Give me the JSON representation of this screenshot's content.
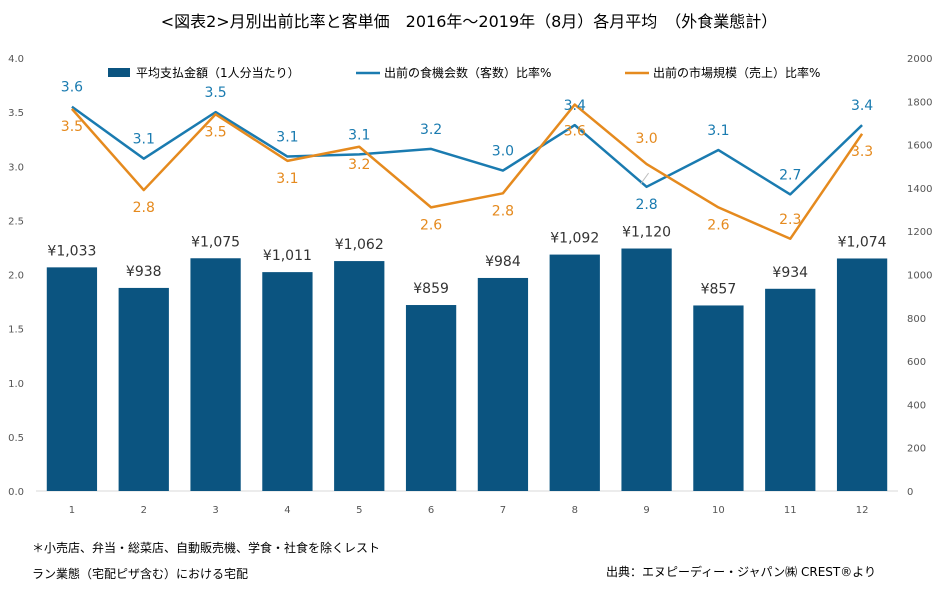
{
  "chart_data": {
    "type": "bar",
    "title": "<図表2>月別出前比率と客単価　2016年～2019年（8月）各月平均　（外食業態計）",
    "categories": [
      "1",
      "2",
      "3",
      "4",
      "5",
      "6",
      "7",
      "8",
      "9",
      "10",
      "11",
      "12"
    ],
    "series": [
      {
        "name": "平均支払金額（1人分当たり）",
        "type": "bar",
        "axis": "right",
        "color": "#0b5480",
        "values": [
          1033,
          938,
          1075,
          1011,
          1062,
          859,
          984,
          1092,
          1120,
          857,
          934,
          1074
        ],
        "labels": [
          "¥1,033",
          "¥938",
          "¥1,075",
          "¥1,011",
          "¥1,062",
          "¥859",
          "¥984",
          "¥1,092",
          "¥1,120",
          "¥857",
          "¥934",
          "¥1,074"
        ]
      },
      {
        "name": "出前の食機会数（客数）比率%",
        "type": "line",
        "axis": "left",
        "color": "#1a7bb0",
        "values": [
          3.55,
          3.07,
          3.5,
          3.09,
          3.11,
          3.16,
          2.96,
          3.38,
          2.81,
          3.15,
          2.74,
          3.38
        ],
        "labels": [
          "3.6",
          "3.1",
          "3.5",
          "3.1",
          "3.1",
          "3.2",
          "3.0",
          "3.4",
          "2.8",
          "3.1",
          "2.7",
          "3.4"
        ]
      },
      {
        "name": "出前の市場規模（売上）比率%",
        "type": "line",
        "axis": "left",
        "color": "#e58a1e",
        "values": [
          3.53,
          2.78,
          3.48,
          3.05,
          3.18,
          2.62,
          2.75,
          3.57,
          3.02,
          2.62,
          2.33,
          3.3
        ],
        "labels": [
          "3.5",
          "2.8",
          "3.5",
          "3.1",
          "3.2",
          "2.6",
          "2.8",
          "3.6",
          "3.0",
          "2.6",
          "2.3",
          "3.3"
        ]
      }
    ],
    "y_left": {
      "min": 0,
      "max": 4,
      "step": 0.5,
      "ticks": [
        "0.0",
        "0.5",
        "1.0",
        "1.5",
        "2.0",
        "2.5",
        "3.0",
        "3.5",
        "4.0"
      ]
    },
    "y_right": {
      "min": 0,
      "max": 2000,
      "step": 200,
      "ticks": [
        "0",
        "200",
        "400",
        "600",
        "800",
        "1000",
        "1200",
        "1400",
        "1600",
        "1800",
        "2000"
      ]
    },
    "grid": false,
    "legend": "top"
  },
  "notes": {
    "line1": "＊小売店、弁当・総菜店、自動販売機、学食・社食を除くレスト",
    "line2": "ラン業態（宅配ピザ含む）における宅配",
    "source": "出典：エヌピーディー・ジャパン㈱ CREST®より"
  }
}
